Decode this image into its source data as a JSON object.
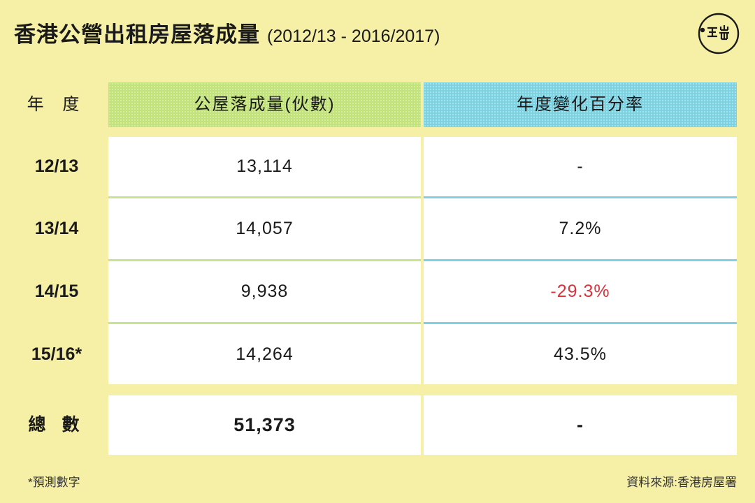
{
  "title": {
    "main": "香港公營出租房屋落成量",
    "sub": "(2012/13 - 2016/2017)"
  },
  "logo_text": "端",
  "colors": {
    "background": "#f6f0a6",
    "header_green": "#c2e27a",
    "header_blue": "#7dd2e2",
    "divider_green": "#c9e58a",
    "divider_blue": "#7fd0e0",
    "negative": "#d6343e"
  },
  "chart_data": {
    "type": "table",
    "columns": [
      "年 度",
      "公屋落成量(伙數)",
      "年度變化百分率"
    ],
    "rows": [
      [
        "12/13",
        "13,114",
        "-"
      ],
      [
        "13/14",
        "14,057",
        "7.2%"
      ],
      [
        "14/15",
        "9,938",
        "-29.3%"
      ],
      [
        "15/16*",
        "14,264",
        "43.5%"
      ]
    ],
    "total": [
      "總 數",
      "51,373",
      "-"
    ]
  },
  "footnote": "*預測數字",
  "source": "資料來源:香港房屋署"
}
